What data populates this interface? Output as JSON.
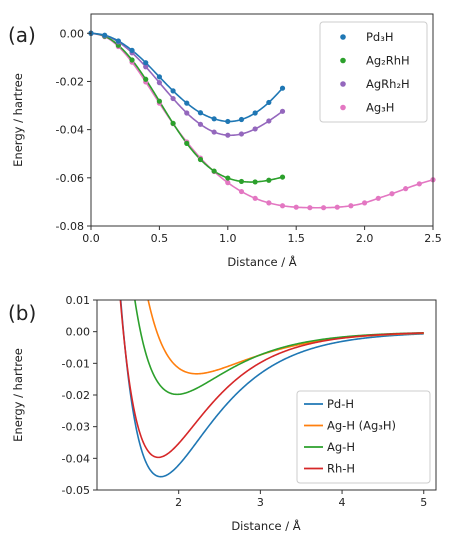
{
  "chart_data": [
    {
      "panel": "(a)",
      "type": "line",
      "xlabel": "Distance / Å",
      "ylabel": "Energy / hartree",
      "xlim": [
        0.0,
        2.5
      ],
      "ylim": [
        -0.08,
        0.008
      ],
      "xticks": [
        "0.0",
        "0.5",
        "1.0",
        "1.5",
        "2.0",
        "2.5"
      ],
      "yticks": [
        "0.00",
        "-0.02",
        "-0.04",
        "-0.06",
        "-0.08"
      ],
      "grid": false,
      "legend": "top-right",
      "series": [
        {
          "name": "Pd₃H",
          "color": "#1f77b4",
          "x": [
            0.0,
            0.1,
            0.2,
            0.3,
            0.4,
            0.5,
            0.6,
            0.7,
            0.8,
            0.9,
            1.0,
            1.1,
            1.2,
            1.3,
            1.4
          ],
          "y": [
            0.0,
            -0.0008,
            -0.0032,
            -0.0071,
            -0.0122,
            -0.0181,
            -0.0239,
            -0.029,
            -0.033,
            -0.0355,
            -0.0366,
            -0.0358,
            -0.0331,
            -0.0287,
            -0.0228
          ]
        },
        {
          "name": "Ag₂RhH",
          "color": "#2ca02c",
          "x": [
            0.0,
            0.1,
            0.2,
            0.3,
            0.4,
            0.5,
            0.6,
            0.7,
            0.8,
            0.9,
            1.0,
            1.1,
            1.2,
            1.3,
            1.4
          ],
          "y": [
            0.0,
            -0.0012,
            -0.005,
            -0.0111,
            -0.0191,
            -0.0282,
            -0.0374,
            -0.0457,
            -0.0524,
            -0.0572,
            -0.0601,
            -0.0615,
            -0.0617,
            -0.061,
            -0.0597
          ]
        },
        {
          "name": "AgRh₂H",
          "color": "#9467bd",
          "x": [
            0.0,
            0.1,
            0.2,
            0.3,
            0.4,
            0.5,
            0.6,
            0.7,
            0.8,
            0.9,
            1.0,
            1.1,
            1.2,
            1.3,
            1.4
          ],
          "y": [
            0.0,
            -0.0009,
            -0.0036,
            -0.0081,
            -0.0139,
            -0.0205,
            -0.0271,
            -0.0331,
            -0.0378,
            -0.041,
            -0.0423,
            -0.0418,
            -0.0397,
            -0.0364,
            -0.0324
          ]
        },
        {
          "name": "Ag₃H",
          "color": "#e377c2",
          "x": [
            0.0,
            0.1,
            0.2,
            0.3,
            0.4,
            0.5,
            0.6,
            0.7,
            0.8,
            0.9,
            1.0,
            1.1,
            1.2,
            1.3,
            1.4,
            1.5,
            1.6,
            1.7,
            1.8,
            1.9,
            2.0,
            2.1,
            2.2,
            2.3,
            2.4,
            2.5
          ],
          "y": [
            0.0,
            -0.0014,
            -0.0055,
            -0.012,
            -0.0202,
            -0.029,
            -0.0375,
            -0.0451,
            -0.0518,
            -0.0574,
            -0.062,
            -0.0657,
            -0.0685,
            -0.0704,
            -0.0716,
            -0.0722,
            -0.0724,
            -0.0724,
            -0.0722,
            -0.0716,
            -0.0704,
            -0.0685,
            -0.0666,
            -0.0645,
            -0.0625,
            -0.0608
          ]
        }
      ]
    },
    {
      "panel": "(b)",
      "type": "line",
      "xlabel": "Distance / Å",
      "ylabel": "Energy / hartree",
      "xlim": [
        1.0,
        5.15
      ],
      "ylim": [
        -0.05,
        0.01
      ],
      "xticks": [
        "2",
        "3",
        "4",
        "5"
      ],
      "yticks": [
        "0.01",
        "0.00",
        "-0.01",
        "-0.02",
        "-0.03",
        "-0.04",
        "-0.05"
      ],
      "grid": false,
      "legend": "bottom-right",
      "series": [
        {
          "name": "Pd-H",
          "color": "#1f77b4",
          "De": 0.0458,
          "re": 1.78,
          "a": 1.52,
          "x_start": 1.25,
          "x_end": 5.0
        },
        {
          "name": "Ag-H (Ag₃H)",
          "color": "#ff7f0e",
          "De": 0.0133,
          "re": 2.22,
          "a": 1.42,
          "x_start": 1.25,
          "x_end": 5.0
        },
        {
          "name": "Ag-H",
          "color": "#2ca02c",
          "De": 0.0198,
          "re": 1.98,
          "a": 1.55,
          "x_start": 1.25,
          "x_end": 5.0
        },
        {
          "name": "Rh-H",
          "color": "#d62728",
          "De": 0.0397,
          "re": 1.75,
          "a": 1.62,
          "x_start": 1.25,
          "x_end": 5.0
        }
      ]
    }
  ]
}
